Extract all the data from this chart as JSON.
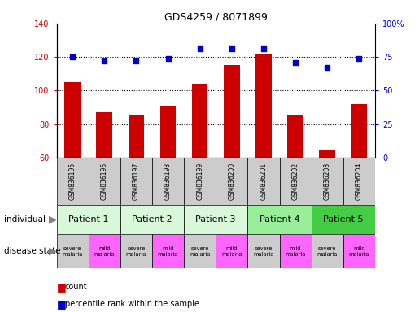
{
  "title": "GDS4259 / 8071899",
  "samples": [
    "GSM836195",
    "GSM836196",
    "GSM836197",
    "GSM836198",
    "GSM836199",
    "GSM836200",
    "GSM836201",
    "GSM836202",
    "GSM836203",
    "GSM836204"
  ],
  "bar_values": [
    105,
    87,
    85,
    91,
    104,
    115,
    122,
    85,
    65,
    92
  ],
  "percentile_values": [
    75,
    72,
    72,
    74,
    81,
    81,
    81,
    71,
    67,
    74
  ],
  "bar_color": "#cc0000",
  "dot_color": "#0000cc",
  "bar_bottom": 60,
  "ylim_left": [
    60,
    140
  ],
  "ylim_right": [
    0,
    100
  ],
  "yticks_left": [
    60,
    80,
    100,
    120,
    140
  ],
  "yticks_right": [
    0,
    25,
    50,
    75,
    100
  ],
  "ytick_labels_right": [
    "0",
    "25",
    "50",
    "75",
    "100%"
  ],
  "patients": [
    {
      "label": "Patient 1",
      "cols": [
        0,
        1
      ],
      "color": "#d9f7d9"
    },
    {
      "label": "Patient 2",
      "cols": [
        2,
        3
      ],
      "color": "#d9f7d9"
    },
    {
      "label": "Patient 3",
      "cols": [
        4,
        5
      ],
      "color": "#d9f7d9"
    },
    {
      "label": "Patient 4",
      "cols": [
        6,
        7
      ],
      "color": "#99ee99"
    },
    {
      "label": "Patient 5",
      "cols": [
        8,
        9
      ],
      "color": "#44cc44"
    }
  ],
  "disease_states": [
    {
      "label": "severe\nmalaria",
      "color": "#cccccc"
    },
    {
      "label": "mild\nmalaria",
      "color": "#ff66ff"
    },
    {
      "label": "severe\nmalaria",
      "color": "#cccccc"
    },
    {
      "label": "mild\nmalaria",
      "color": "#ff66ff"
    },
    {
      "label": "severe\nmalaria",
      "color": "#cccccc"
    },
    {
      "label": "mild\nmalaria",
      "color": "#ff66ff"
    },
    {
      "label": "severe\nmalaria",
      "color": "#cccccc"
    },
    {
      "label": "mild\nmalaria",
      "color": "#ff66ff"
    },
    {
      "label": "severe\nmalaria",
      "color": "#cccccc"
    },
    {
      "label": "mild\nmalaria",
      "color": "#ff66ff"
    }
  ],
  "legend_count_color": "#cc0000",
  "legend_dot_color": "#0000cc",
  "xlabel_area_color": "#cccccc",
  "dotted_lines": [
    80,
    100,
    120
  ]
}
